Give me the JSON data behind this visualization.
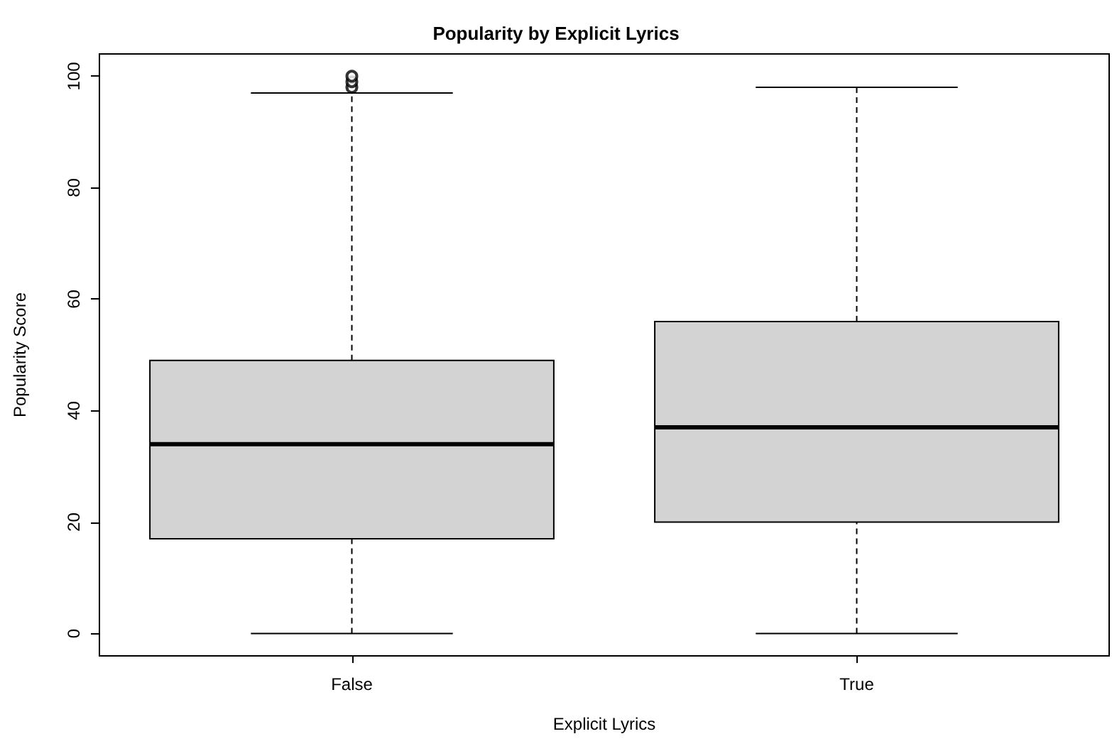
{
  "chart_data": {
    "type": "box",
    "title": "Popularity by Explicit Lyrics",
    "xlabel": "Explicit Lyrics",
    "ylabel": "Popularity Score",
    "categories": [
      "False",
      "True"
    ],
    "boxes": [
      {
        "low": 0,
        "q1": 17,
        "median": 34,
        "q3": 49,
        "high": 97,
        "outliers": [
          98,
          99,
          100
        ]
      },
      {
        "low": 0,
        "q1": 20,
        "median": 37,
        "q3": 56,
        "high": 98
      }
    ],
    "color": "#d3d3d3",
    "ylim": [
      -4,
      104
    ],
    "yticks": [
      0,
      20,
      40,
      60,
      80,
      100
    ],
    "grid": false
  }
}
